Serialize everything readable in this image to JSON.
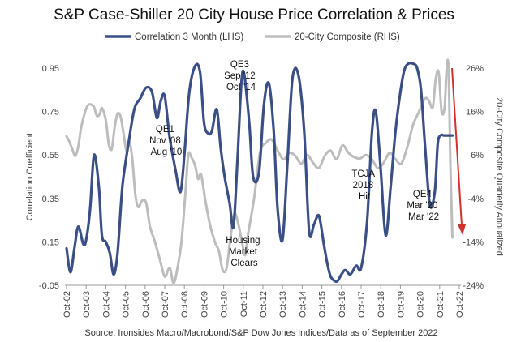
{
  "chart_data": {
    "type": "line",
    "title": "S&P Case-Shiller 20 City House Price Correlation & Prices",
    "source": "Source: Ironsides Macro/Macrobond/S&P Dow Jones Indices/Data as of September 2022",
    "left_axis": {
      "label": "Correlation Coefficient",
      "ticks": [
        "-0.05",
        "0.15",
        "0.35",
        "0.55",
        "0.75",
        "0.95"
      ],
      "range": [
        -0.05,
        0.95
      ]
    },
    "right_axis": {
      "label": "20-City Composite Quarterly Annualized",
      "ticks": [
        "-24%",
        "-14%",
        "-4%",
        "6%",
        "16%",
        "26%"
      ],
      "range": [
        -24,
        26
      ]
    },
    "x_axis": {
      "ticks": [
        "Oct-02",
        "Oct-03",
        "Oct-04",
        "Oct-05",
        "Oct-06",
        "Oct-07",
        "Oct-08",
        "Oct-09",
        "Oct-10",
        "Oct-11",
        "Oct-12",
        "Oct-13",
        "Oct-14",
        "Oct-15",
        "Oct-16",
        "Oct-17",
        "Oct-18",
        "Oct-19",
        "Oct-20",
        "Oct-21",
        "Oct-22"
      ],
      "range": [
        2002.75,
        2022.75
      ]
    },
    "legend": [
      "Correlation 3 Month (LHS)",
      "20-City Composite (RHS)"
    ],
    "colors": {
      "correlation": "#3a4f86",
      "composite": "#bdbdbd",
      "arrow": "#d0312d"
    },
    "annotations": [
      {
        "lines": [
          "QE1",
          "Nov '08",
          "Aug '10"
        ]
      },
      {
        "lines": [
          "QE3",
          "Sep '12",
          "Oct '14"
        ]
      },
      {
        "lines": [
          "Housing",
          "Market",
          "Clears"
        ]
      },
      {
        "lines": [
          "TCJA",
          "2018",
          "Hit"
        ]
      },
      {
        "lines": [
          "QE4",
          "Mar '20",
          "Mar '22"
        ]
      }
    ],
    "series": [
      {
        "name": "Correlation 3 Month (LHS)",
        "axis": "left",
        "x": [
          2002.75,
          2002.95,
          2003.15,
          2003.35,
          2003.6,
          2003.75,
          2003.95,
          2004.15,
          2004.4,
          2004.55,
          2004.75,
          2004.95,
          2005.15,
          2005.35,
          2005.55,
          2005.65,
          2005.9,
          2006.2,
          2006.5,
          2006.8,
          2007.1,
          2007.35,
          2007.55,
          2007.75,
          2008.0,
          2008.3,
          2008.55,
          2008.75,
          2009.0,
          2009.3,
          2009.55,
          2009.75,
          2009.95,
          2010.15,
          2010.4,
          2010.6,
          2010.8,
          2011.05,
          2011.25,
          2011.45,
          2011.65,
          2011.8,
          2012.05,
          2012.25,
          2012.55,
          2012.8,
          2013.05,
          2013.3,
          2013.5,
          2013.75,
          2014.0,
          2014.25,
          2014.55,
          2014.85,
          2015.1,
          2015.35,
          2015.6,
          2015.85,
          2016.05,
          2016.2,
          2016.4,
          2016.55,
          2016.75,
          2016.95,
          2017.2,
          2017.5,
          2017.75,
          2018.05,
          2018.3,
          2018.5,
          2018.75,
          2019.0,
          2019.25,
          2019.5,
          2019.75,
          2019.95,
          2020.15,
          2020.4,
          2020.6,
          2020.8,
          2021.0,
          2021.25,
          2021.5,
          2021.65,
          2021.8,
          2021.95,
          2022.1,
          2022.25,
          2022.4
        ],
        "values": [
          0.12,
          0.01,
          0.12,
          0.22,
          0.14,
          0.16,
          0.3,
          0.55,
          0.4,
          0.18,
          0.15,
          0.1,
          0.0,
          0.1,
          0.36,
          0.45,
          0.6,
          0.76,
          0.81,
          0.86,
          0.84,
          0.72,
          0.8,
          0.82,
          0.63,
          0.48,
          0.38,
          0.55,
          0.84,
          0.96,
          0.93,
          0.7,
          0.65,
          0.66,
          0.76,
          0.58,
          0.45,
          0.33,
          0.22,
          0.52,
          0.88,
          0.92,
          0.7,
          0.45,
          0.47,
          0.78,
          0.88,
          0.66,
          0.3,
          0.16,
          0.52,
          0.9,
          0.92,
          0.66,
          0.2,
          0.23,
          0.27,
          0.14,
          0.04,
          -0.01,
          -0.03,
          -0.03,
          0.0,
          0.02,
          0.0,
          0.04,
          0.03,
          0.24,
          0.65,
          0.75,
          0.48,
          0.18,
          0.4,
          0.66,
          0.84,
          0.94,
          0.97,
          0.97,
          0.95,
          0.85,
          0.6,
          0.32,
          0.38,
          0.6,
          0.64,
          0.64,
          0.64,
          0.64,
          0.64
        ]
      },
      {
        "name": "20-City Composite (RHS)",
        "axis": "right",
        "x": [
          2002.75,
          2002.9,
          2003.05,
          2003.2,
          2003.35,
          2003.5,
          2003.7,
          2003.85,
          2004.0,
          2004.15,
          2004.3,
          2004.45,
          2004.55,
          2004.75,
          2004.9,
          2005.05,
          2005.2,
          2005.35,
          2005.5,
          2005.65,
          2005.8,
          2005.95,
          2006.1,
          2006.25,
          2006.4,
          2006.6,
          2006.8,
          2007.0,
          2007.25,
          2007.5,
          2007.75,
          2008.0,
          2008.2,
          2008.4,
          2008.6,
          2008.8,
          2008.95,
          2009.1,
          2009.3,
          2009.45,
          2009.6,
          2009.8,
          2010.05,
          2010.3,
          2010.5,
          2010.7,
          2010.9,
          2011.1,
          2011.3,
          2011.5,
          2011.7,
          2011.85,
          2012.0,
          2012.3,
          2012.6,
          2012.9,
          2013.2,
          2013.5,
          2013.8,
          2014.1,
          2014.4,
          2014.7,
          2015.0,
          2015.3,
          2015.6,
          2015.9,
          2016.2,
          2016.5,
          2016.8,
          2017.1,
          2017.4,
          2017.7,
          2018.0,
          2018.3,
          2018.6,
          2018.9,
          2019.2,
          2019.5,
          2019.8,
          2020.1,
          2020.4,
          2020.7,
          2021.0,
          2021.2,
          2021.4,
          2021.55,
          2021.7,
          2021.85,
          2022.0,
          2022.1,
          2022.2,
          2022.3,
          2022.4
        ],
        "values": [
          10.3,
          9.0,
          7.2,
          5.8,
          8.0,
          12.5,
          16.0,
          17.5,
          17.6,
          17.0,
          15.0,
          15.5,
          16.8,
          14.0,
          8.5,
          7.4,
          12.4,
          15.5,
          14.8,
          11.0,
          7.0,
          9.0,
          5.0,
          -3.0,
          -6.0,
          -4.5,
          -5.0,
          -10.5,
          -14.0,
          -18.0,
          -22.0,
          -20.0,
          -23.5,
          -20.0,
          -14.0,
          -3.0,
          6.0,
          5.5,
          3.5,
          0.5,
          1.5,
          -4.0,
          -10.0,
          -14.0,
          -16.0,
          -20.5,
          -20.0,
          -13.0,
          -7.5,
          -10.0,
          -14.5,
          -17.0,
          -12.0,
          -4.0,
          6.5,
          8.8,
          9.5,
          7.0,
          5.0,
          6.5,
          5.8,
          4.0,
          6.0,
          4.2,
          3.0,
          5.8,
          7.0,
          5.0,
          8.2,
          6.5,
          5.5,
          5.2,
          6.0,
          5.0,
          3.0,
          4.2,
          6.5,
          5.0,
          4.0,
          7.8,
          13.0,
          16.0,
          19.0,
          18.5,
          17.0,
          23.5,
          25.0,
          16.0,
          17.0,
          25.5,
          26.0,
          3.0,
          -13.0
        ]
      }
    ]
  }
}
